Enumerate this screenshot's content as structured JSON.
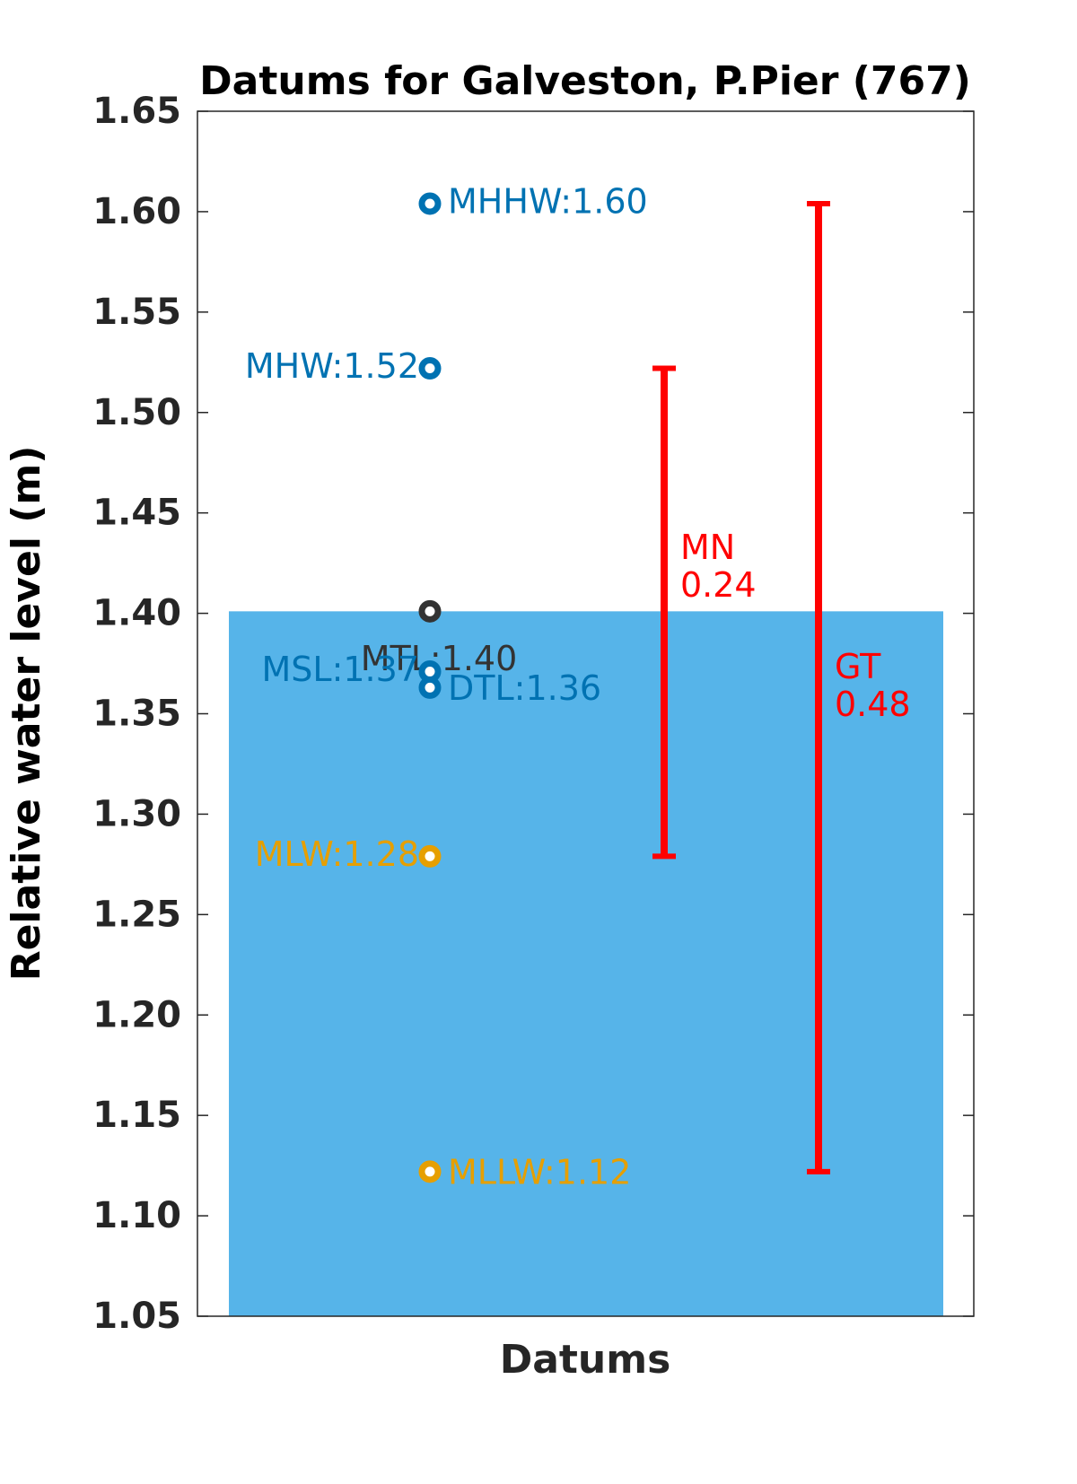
{
  "chart_data": {
    "type": "datum",
    "title": "Datums for Galveston, P.Pier (767)",
    "xlabel": "Datums",
    "ylabel": "Relative water level (m)",
    "ylim": [
      1.05,
      1.65
    ],
    "yticks": [
      1.05,
      {
        "value": 1.1,
        "label": "1.10"
      },
      1.15,
      {
        "value": 1.2,
        "label": "1.20"
      },
      1.25,
      {
        "value": 1.3,
        "label": "1.30"
      },
      1.35,
      {
        "value": 1.4,
        "label": "1.40"
      },
      1.45,
      {
        "value": 1.5,
        "label": "1.50"
      },
      1.55,
      {
        "value": 1.6,
        "label": "1.60"
      },
      1.65
    ],
    "bar": {
      "value": 1.401,
      "color": "#56b4e9"
    },
    "points": {
      "values": [
        1.604,
        1.522,
        1.401,
        1.371,
        1.363,
        1.279,
        1.122
      ],
      "value_labels": [
        "MHHW:1.60",
        "MHW:1.52",
        "MTL:1.40",
        "MSL:1.37",
        "DTL:1.36",
        "MLW:1.28",
        "MLLW:1.12"
      ],
      "colors": [
        "#0072b2",
        "#0072b2",
        "#333333",
        "#0072b2",
        "#0072b2",
        "#e69f00",
        "#e69f00"
      ]
    },
    "ranges": [
      {
        "name": "MN",
        "low": 1.279,
        "value": 0.243,
        "value_label": "0.24",
        "color": "#ff0000"
      },
      {
        "name": "GT",
        "low": 1.122,
        "value": 0.482,
        "value_label": "0.48",
        "color": "#ff0000"
      }
    ]
  }
}
